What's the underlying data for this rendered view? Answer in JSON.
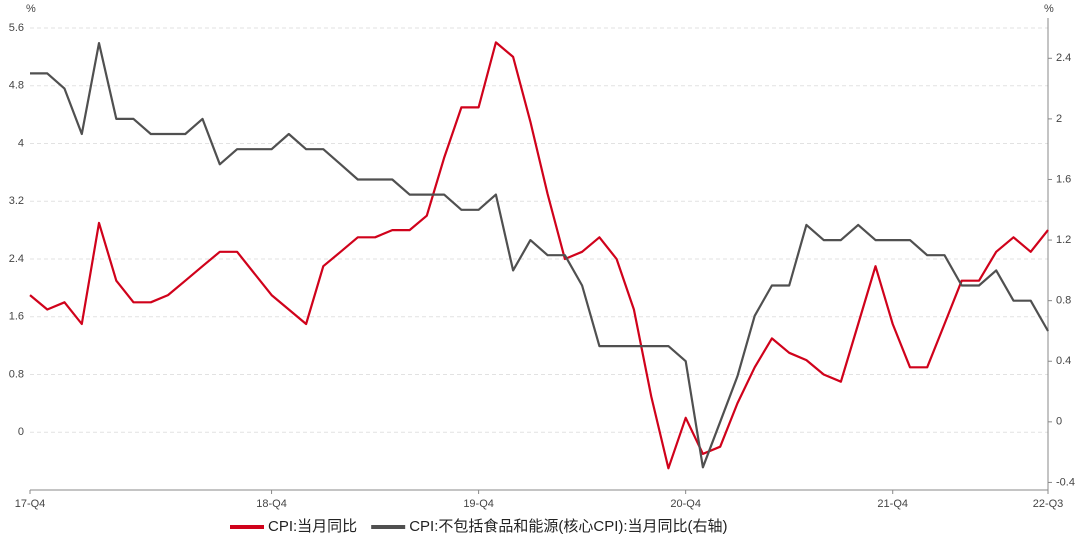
{
  "chart_data": {
    "type": "line",
    "y_unit": "%",
    "y2_unit": "%",
    "categories": [
      "17-Q4",
      null,
      null,
      null,
      null,
      null,
      null,
      null,
      null,
      null,
      null,
      null,
      null,
      null,
      "18-Q4",
      null,
      null,
      null,
      null,
      null,
      null,
      null,
      null,
      null,
      null,
      null,
      "19-Q4",
      null,
      null,
      null,
      null,
      null,
      null,
      null,
      null,
      null,
      null,
      null,
      "20-Q4",
      null,
      null,
      null,
      null,
      null,
      null,
      null,
      null,
      null,
      null,
      null,
      "21-Q4",
      null,
      null,
      null,
      null,
      null,
      null,
      null,
      null,
      "22-Q3"
    ],
    "series": [
      {
        "name": "CPI:当月同比",
        "color": "#d0021b",
        "values": [
          1.9,
          1.7,
          1.8,
          1.5,
          2.9,
          2.1,
          1.8,
          1.8,
          1.9,
          2.1,
          2.3,
          2.5,
          2.5,
          2.2,
          1.9,
          1.7,
          1.5,
          2.3,
          2.5,
          2.7,
          2.7,
          2.8,
          2.8,
          3.0,
          3.8,
          4.5,
          4.5,
          5.4,
          5.2,
          4.3,
          3.3,
          2.4,
          2.5,
          2.7,
          2.4,
          1.7,
          0.5,
          -0.5,
          0.2,
          -0.3,
          -0.2,
          0.4,
          0.9,
          1.3,
          1.1,
          1.0,
          0.8,
          0.7,
          1.5,
          2.3,
          1.5,
          0.9,
          0.9,
          1.5,
          2.1,
          2.1,
          2.5,
          2.7,
          2.5,
          2.8
        ]
      },
      {
        "name": "CPI:不包括食品和能源(核心CPI):当月同比(右轴)",
        "color": "#505050",
        "axis": "y2",
        "values": [
          2.3,
          2.3,
          2.2,
          1.9,
          2.5,
          2.0,
          2.0,
          1.9,
          1.9,
          1.9,
          2.0,
          1.7,
          1.8,
          1.8,
          1.8,
          1.9,
          1.8,
          1.8,
          1.7,
          1.6,
          1.6,
          1.6,
          1.5,
          1.5,
          1.5,
          1.4,
          1.4,
          1.5,
          1.0,
          1.2,
          1.1,
          1.1,
          0.9,
          0.5,
          0.5,
          0.5,
          0.5,
          0.5,
          0.4,
          -0.3,
          0.0,
          0.3,
          0.7,
          0.9,
          0.9,
          1.3,
          1.2,
          1.2,
          1.3,
          1.2,
          1.2,
          1.2,
          1.1,
          1.1,
          0.9,
          0.9,
          1.0,
          0.8,
          0.8,
          0.6
        ]
      }
    ],
    "ylim": [
      -0.8,
      5.6
    ],
    "yticks": [
      0,
      0.8,
      1.6,
      2.4,
      3.2,
      4,
      4.8,
      5.6
    ],
    "y2lim": [
      -0.45,
      2.6
    ],
    "y2ticks": [
      -0.4,
      0,
      0.4,
      0.8,
      1.2,
      1.6,
      2,
      2.4
    ],
    "grid": true,
    "legend": "bottom"
  }
}
